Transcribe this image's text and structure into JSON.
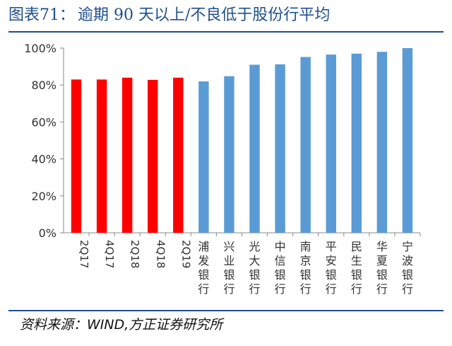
{
  "header": {
    "figure_label": "图表71：",
    "title": "逾期 90 天以上/不良低于股份行平均"
  },
  "footer": {
    "source": "资料来源：WIND,方正证券研究所"
  },
  "colors": {
    "header_text": "#1e4f8c",
    "rule": "#1e4f8c",
    "bar_red": "#ff0000",
    "bar_blue": "#5b9bd5"
  },
  "chart_data": {
    "type": "bar",
    "categories": [
      "2Q17",
      "4Q17",
      "2Q18",
      "4Q18",
      "2Q19",
      "浦发银行",
      "兴业银行",
      "光大银行",
      "中信银行",
      "南京银行",
      "平安银行",
      "民生银行",
      "华夏银行",
      "宁波银行"
    ],
    "values": [
      83.0,
      83.0,
      84.0,
      82.8,
      84.0,
      82.0,
      84.8,
      91.0,
      91.2,
      95.2,
      96.5,
      97.0,
      98.0,
      100.0
    ],
    "bar_colors": [
      "#ff0000",
      "#ff0000",
      "#ff0000",
      "#ff0000",
      "#ff0000",
      "#5b9bd5",
      "#5b9bd5",
      "#5b9bd5",
      "#5b9bd5",
      "#5b9bd5",
      "#5b9bd5",
      "#5b9bd5",
      "#5b9bd5",
      "#5b9bd5"
    ],
    "y_ticks": [
      "0%",
      "20%",
      "40%",
      "60%",
      "80%",
      "100%"
    ],
    "ylim": [
      0,
      100
    ],
    "grid": false,
    "xlabel": "",
    "ylabel": ""
  }
}
